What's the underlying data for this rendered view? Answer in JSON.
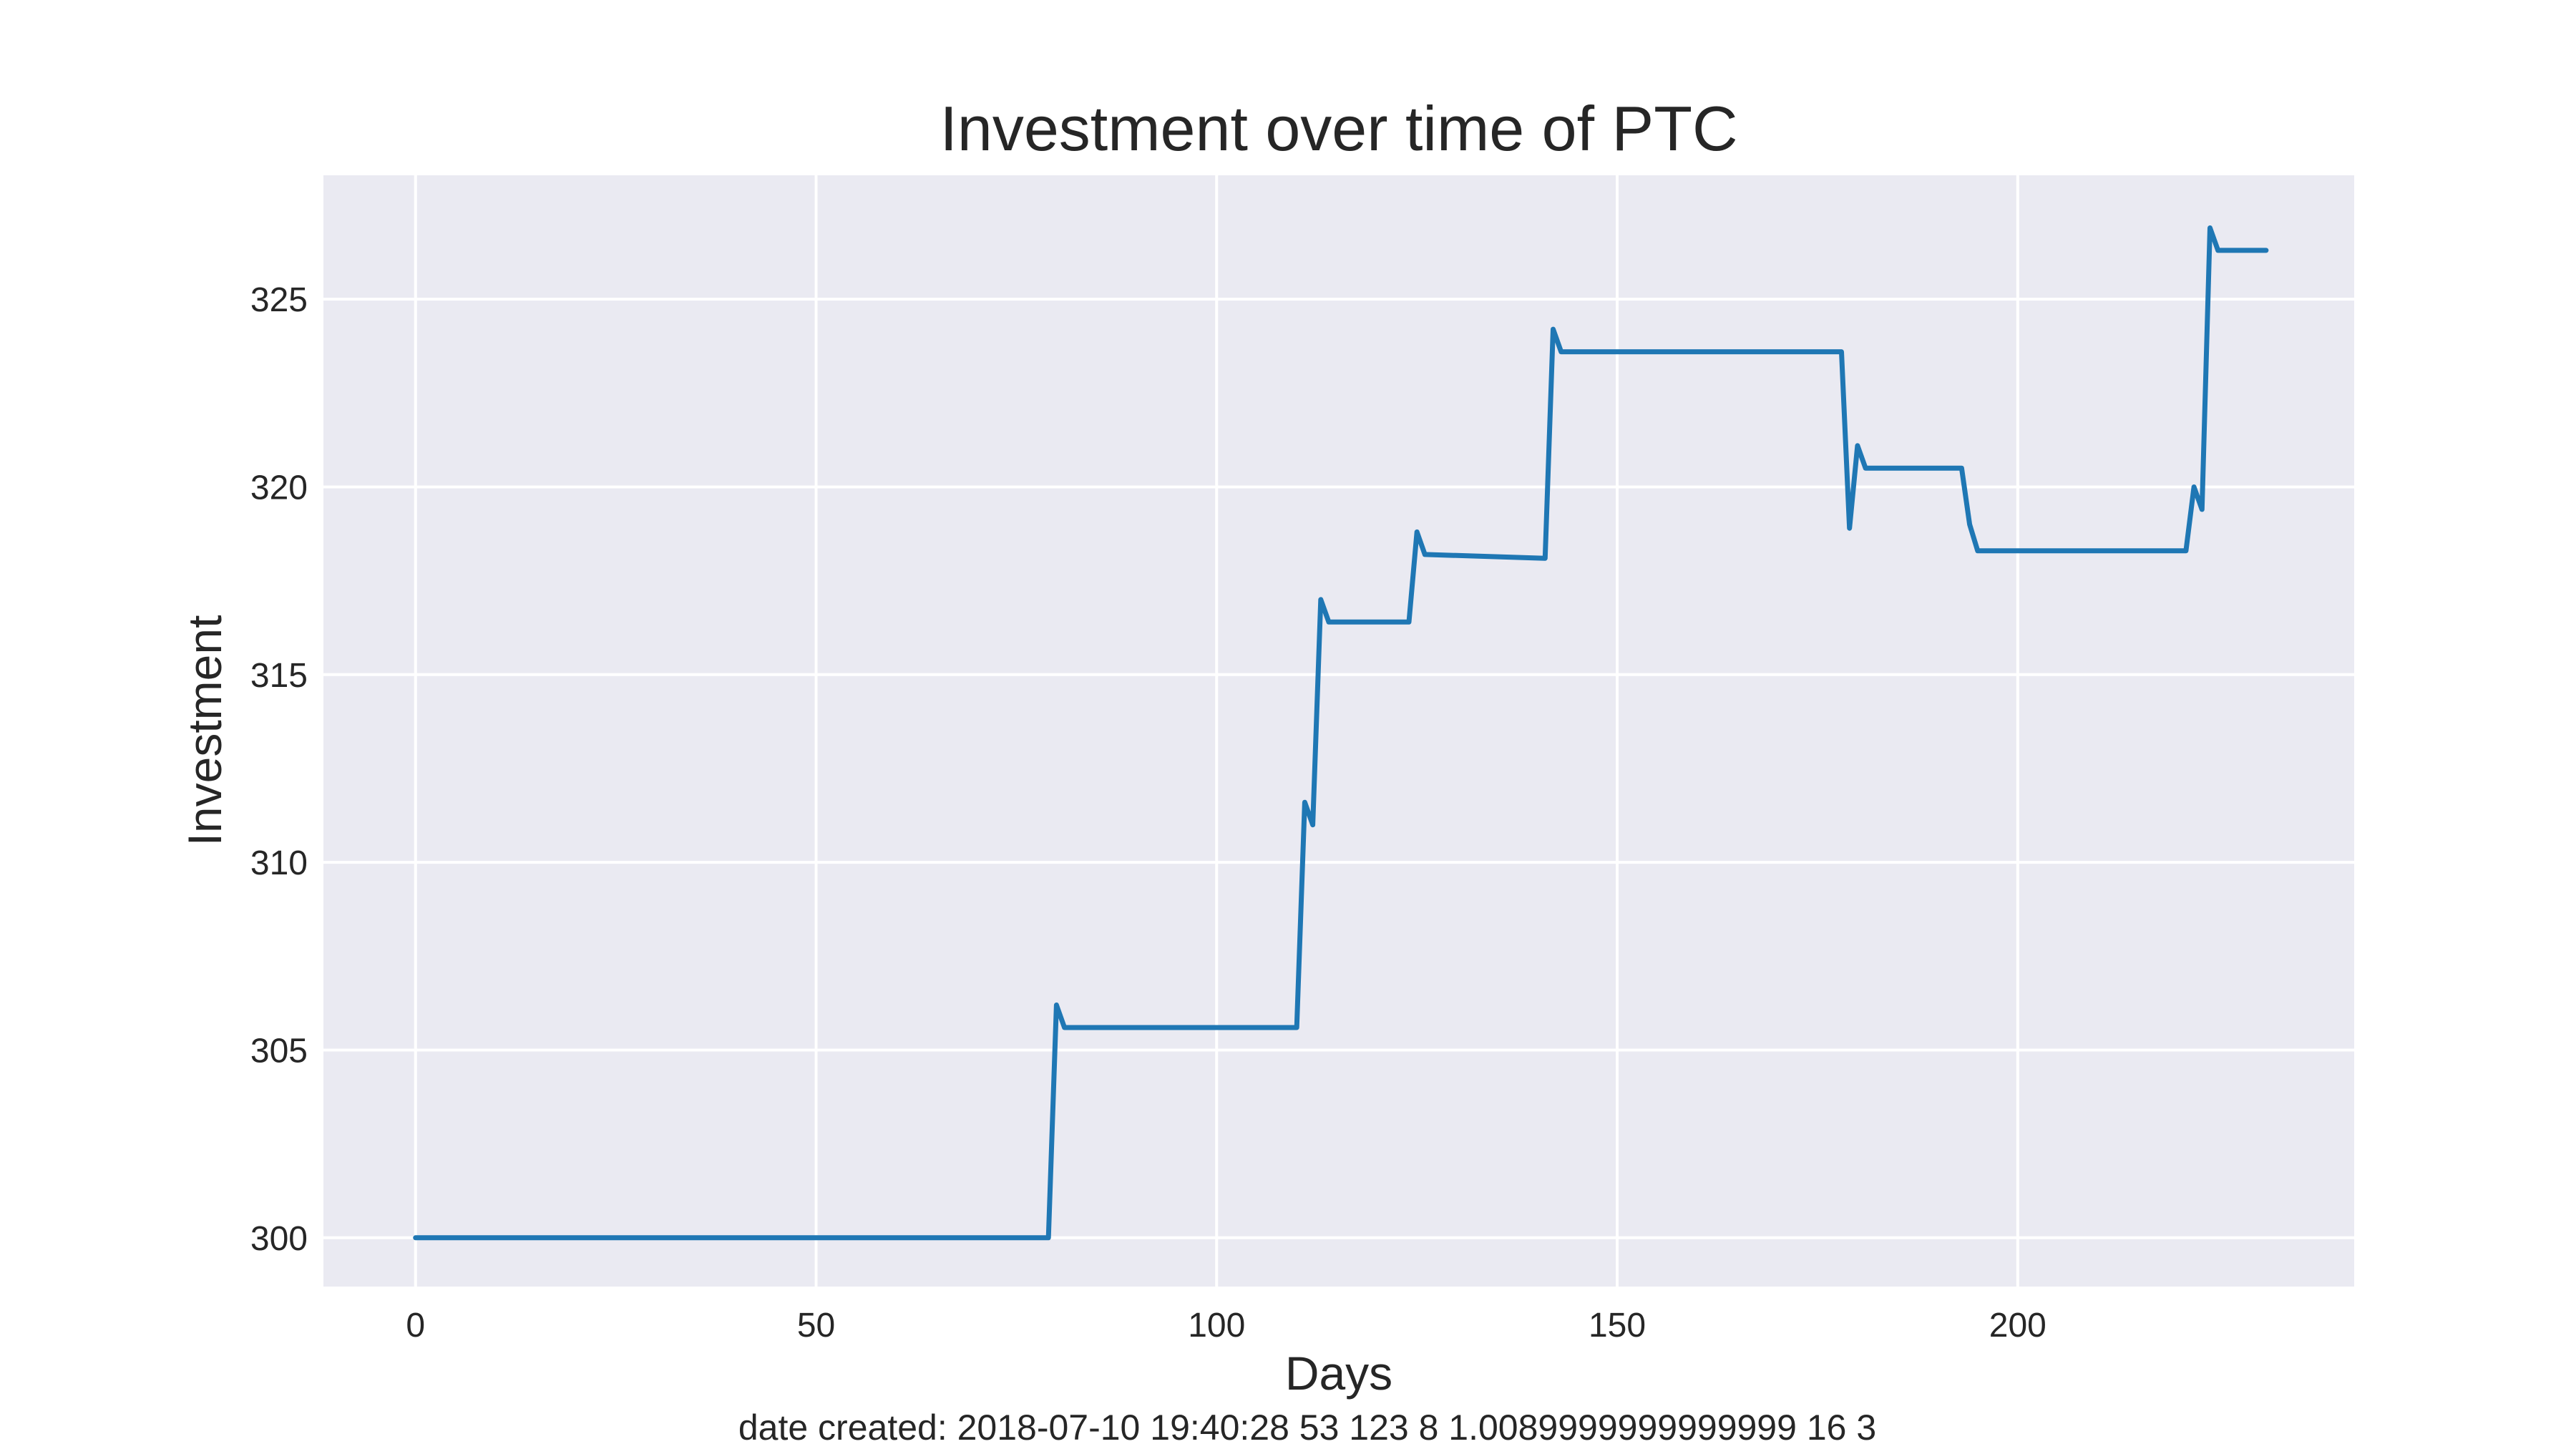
{
  "chart_data": {
    "type": "line",
    "title": "Investment over time of PTC",
    "xlabel": "Days",
    "ylabel": "Investment",
    "footer": "date created: 2018-07-10 19:40:28 53 123 8 1.0089999999999999 16 3",
    "xlim": [
      -11.5,
      242
    ],
    "ylim": [
      298.7,
      328.3
    ],
    "xticks": [
      0,
      50,
      100,
      150,
      200
    ],
    "yticks": [
      300,
      305,
      310,
      315,
      320,
      325
    ],
    "grid": true,
    "colors": {
      "background": "#EAEAF2",
      "grid": "#FFFFFF",
      "line": "#1F77B4"
    },
    "series": [
      {
        "x": [
          0,
          79,
          80,
          81,
          110,
          111,
          112,
          113,
          114,
          124,
          125,
          126,
          141,
          142,
          143,
          178,
          179,
          180,
          181,
          193,
          194,
          195,
          221,
          222,
          223,
          224,
          225,
          231
        ],
        "y": [
          300.0,
          300.0,
          306.2,
          305.6,
          305.6,
          311.6,
          311.0,
          317.0,
          316.4,
          316.4,
          318.8,
          318.2,
          318.1,
          324.2,
          323.6,
          323.6,
          318.9,
          321.1,
          320.5,
          320.5,
          319.0,
          318.3,
          318.3,
          320.0,
          319.4,
          326.9,
          326.3,
          326.3
        ]
      }
    ]
  }
}
